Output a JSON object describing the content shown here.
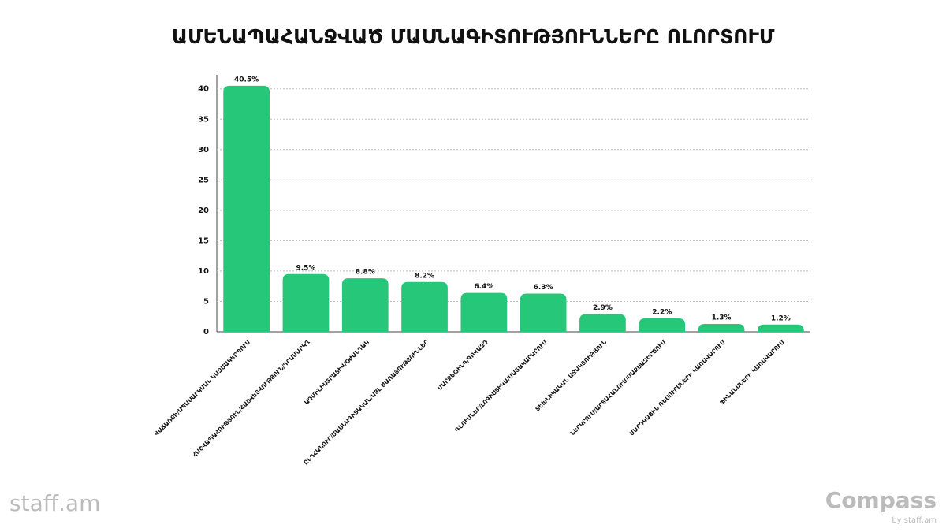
{
  "chart_data": {
    "type": "bar",
    "title": "ԱՄԵՆԱՊԱՀԱՆՋՎԱԾ ՄԱՍՆԱԳԻՏՈՒԹՅՈՒՆՆԵՐԸ ՈԼՈՐՏՈՒՄ",
    "categories": [
      "ՎԱՃԱՌՔԻ/ՍՊԱՍԱՐԿՄԱՆ ԿԱԶՄԱԿԵՐՊՈՒՄ",
      "ՀԱՇՎԱՊԱՀՈՒԹՅՈՒՆ/ՀԱՇՎԵՏՎՈՒԹՅՈՒՆ/ԴՐԱՄԱՐԿՂ",
      "ԱԴՄԻՆԻՍՏՐԱՏԻՎ/ՕԺԱՆԴԱԿ",
      "ԸՆԴՀԱՆՈՒՐ/ՄԱՍՆԱԳԻՏԱԿԱՆ/ԱՅԼ ԾԱՌԱՅՈՒԹՅՈՒՆՆԵՐ",
      "ՄԱՐՔԵԹԻՆԳ/ԳՈՎԱԶԴ",
      "ԳՆՈՒՄՆԵՐ/ԼՈԳԻՍՏԻԿԱ/ՄԱՏԱԿԱՐԱՐՈՒՄ",
      "ՏԵԽՆԻԿԱԿԱՆ ԱՋԱԿՑՈՒԹՅՈՒՆ",
      "ՆԵՐԿՐՈՒՄ/ԱՐՏԱՀԱՆՈՒՄ/ՄԱՔՍԱԶԵՐԾՈՒՄ",
      "ՄԱՐԴԿԱՅԻՆ ՌԵՍՈՒՐՍՆԵՐԻ ԿԱՌԱՎԱՐՈՒՄ",
      "ՖԻՆԱՆՍՆԵՐԻ ԿԱՌԱՎԱՐՈՒՄ"
    ],
    "values": [
      40.5,
      9.5,
      8.8,
      8.2,
      6.4,
      6.3,
      2.9,
      2.2,
      1.3,
      1.2
    ],
    "value_labels": [
      "40.5%",
      "9.5%",
      "8.8%",
      "8.2%",
      "6.4%",
      "6.3%",
      "2.9%",
      "2.2%",
      "1.3%",
      "1.2%"
    ],
    "color": "#27c77a",
    "ylim": [
      0,
      42.3
    ],
    "yticks": [
      0,
      5,
      10,
      15,
      20,
      25,
      30,
      35,
      40
    ],
    "grid": true
  },
  "logos": {
    "left": "staff.am",
    "right": "Compass",
    "right_sub": "by staff.am"
  }
}
